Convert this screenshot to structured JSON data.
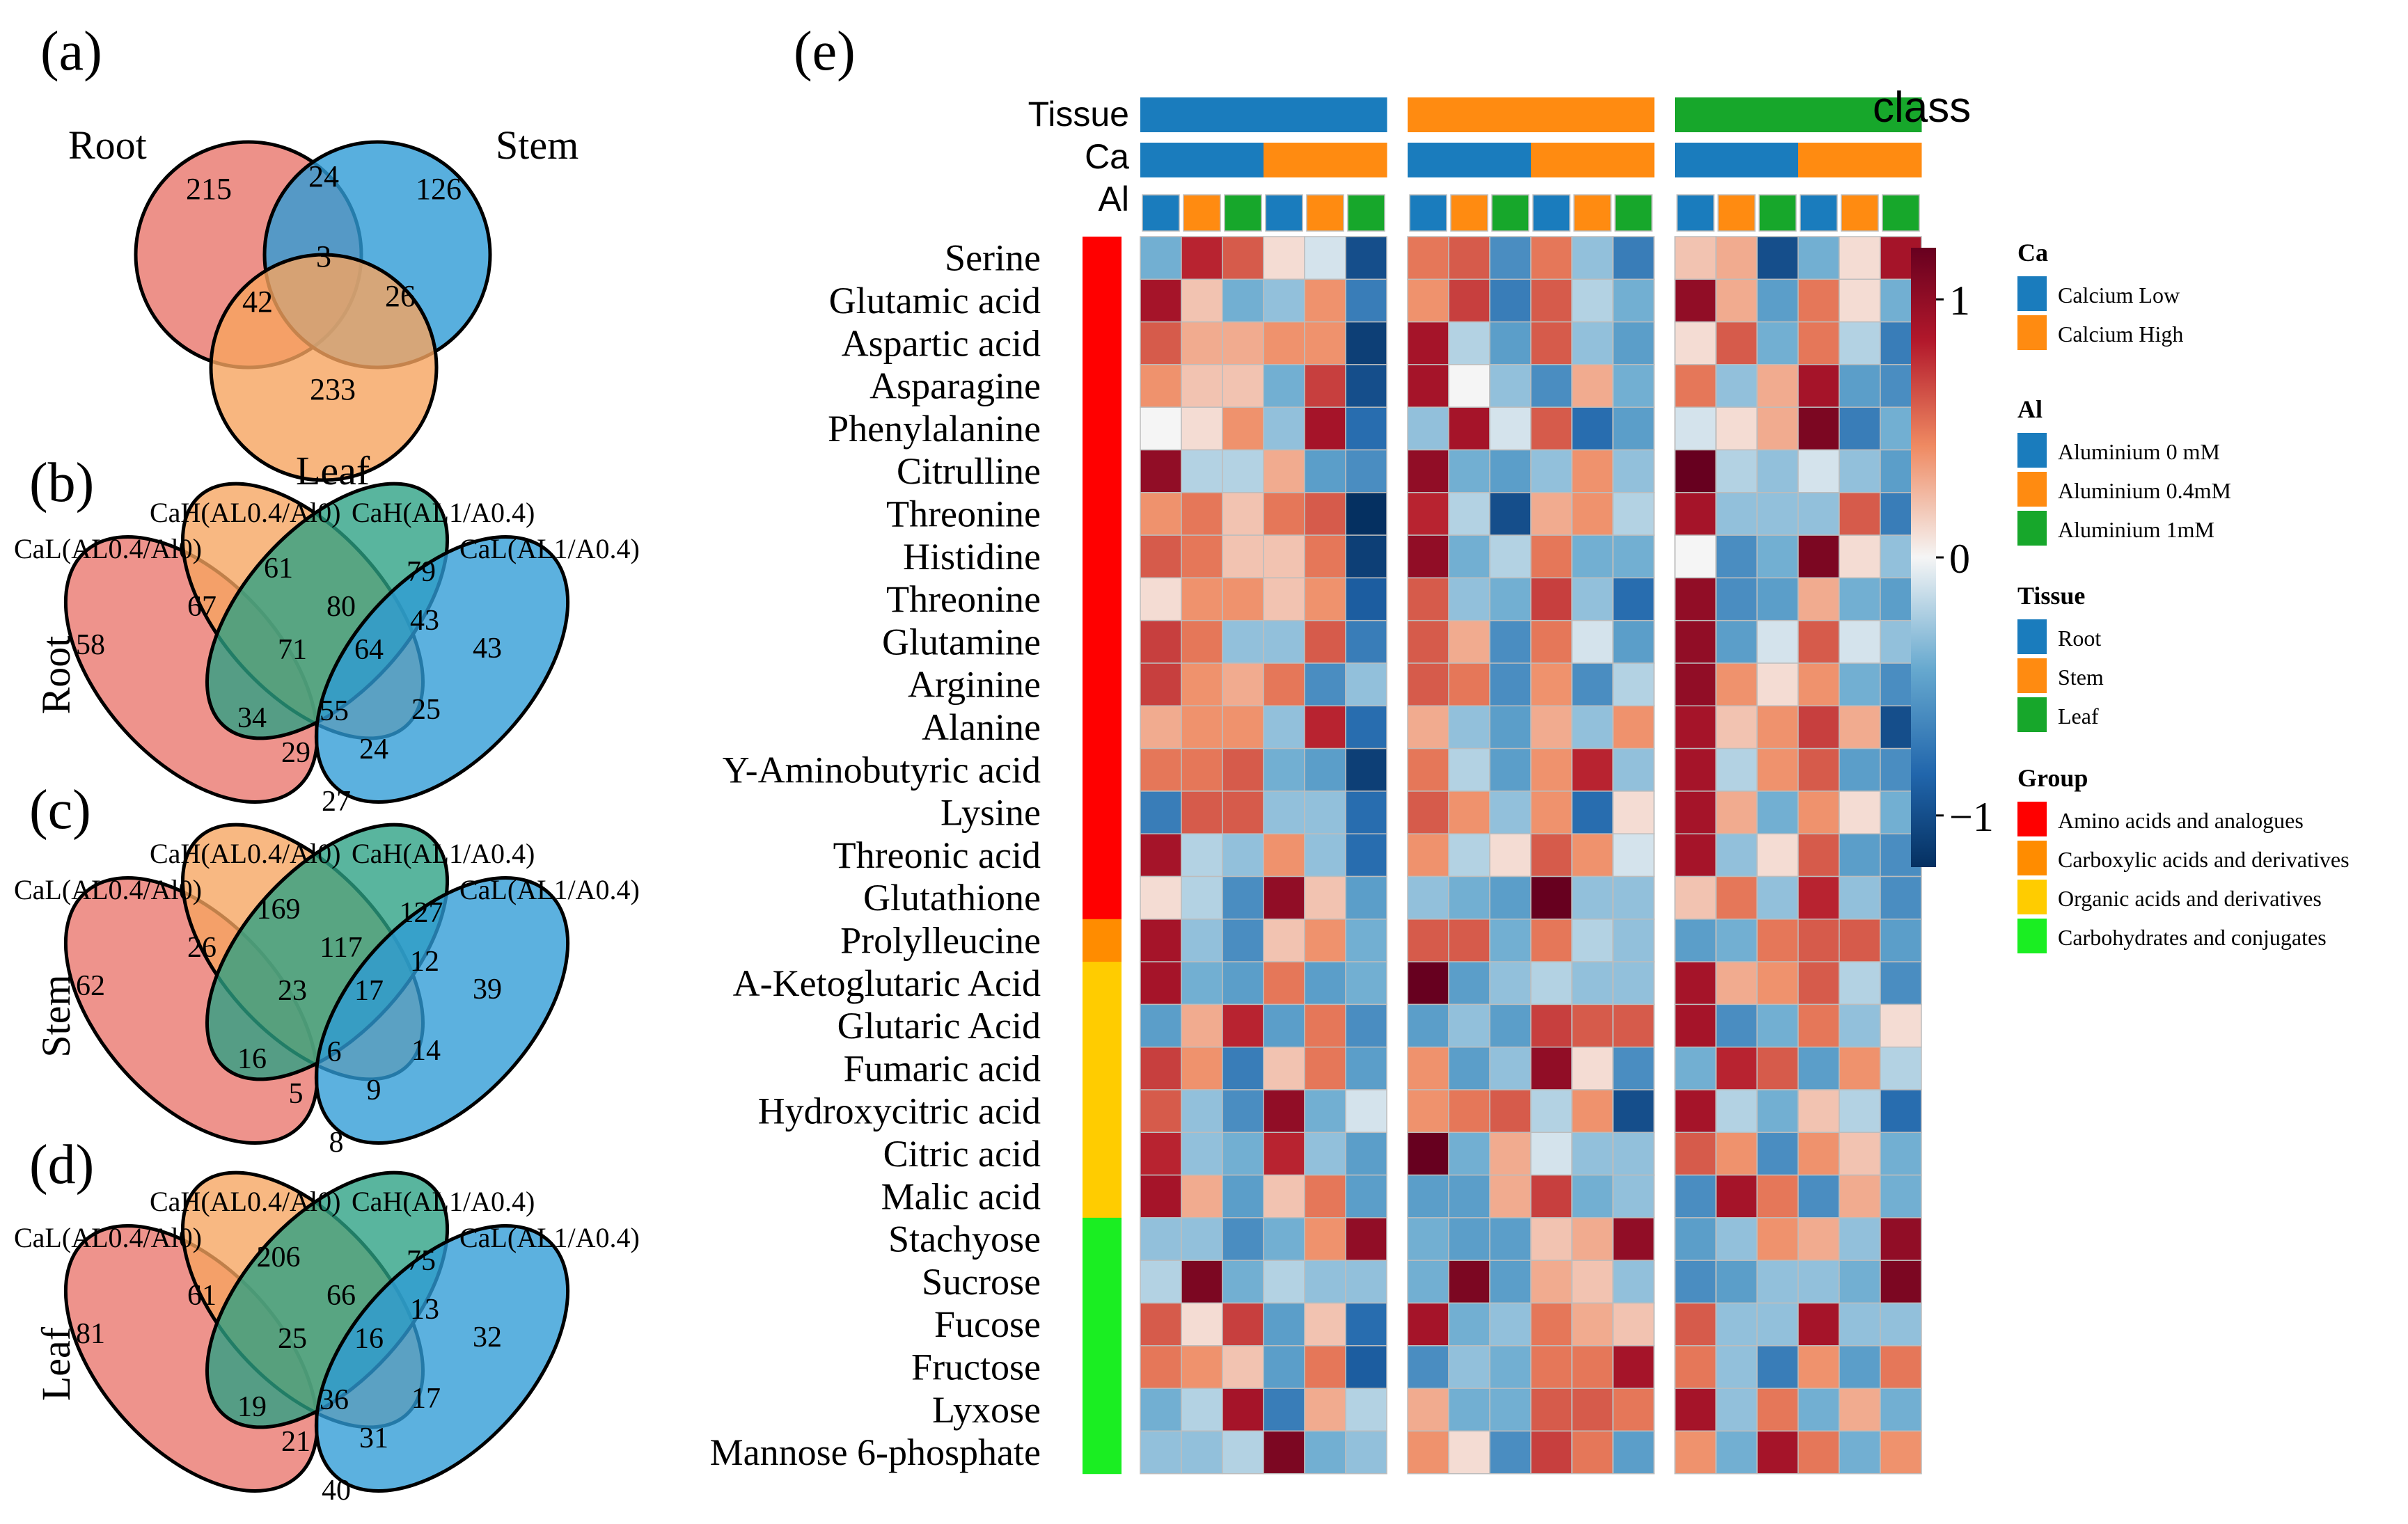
{
  "panel_labels": [
    "(a)",
    "(b)",
    "(c)",
    "(d)",
    "(e)"
  ],
  "colors": {
    "venn_red": "#e9756c",
    "venn_blue": "#2e9bd6",
    "venn_orange": "#f6a45f",
    "venn_green": "#2aa083",
    "cal_low": "#1a7cbd",
    "cal_high": "#ff8b11",
    "al_0": "#1a7cbd",
    "al_04": "#ff8b11",
    "al_1": "#17a72b",
    "tissue_root": "#1a7cbd",
    "tissue_stem": "#ff8b11",
    "tissue_leaf": "#17a72b",
    "group_amino": "#ff0000",
    "group_carboxylic": "#ff8c00",
    "group_organic": "#ffcc00",
    "group_carbo": "#1aee22",
    "heat_low": "#053061",
    "heat_mid": "#f5f5f5",
    "heat_high": "#67001f"
  },
  "chart_data": [
    {
      "type": "venn",
      "panel": "(a)",
      "sets": [
        "Root",
        "Stem",
        "Leaf"
      ],
      "regions": {
        "root_only": 215,
        "stem_only": 126,
        "leaf_only": 233,
        "root_stem": 24,
        "root_leaf": 42,
        "stem_leaf": 26,
        "all": 3
      }
    },
    {
      "type": "venn",
      "panel": "(b)",
      "side_label": "Root",
      "sets": [
        "CaL(AL0.4/Al0)",
        "CaH(AL0.4/Al0)",
        "CaH(AL1/A0.4)",
        "CaL(AL1/A0.4)"
      ],
      "regions": {
        "A": 58,
        "B": 61,
        "C": 79,
        "D": 43,
        "AB": 67,
        "BC": 80,
        "CD": 43,
        "ABC": 71,
        "BCD": 64,
        "ABCD": 55,
        "AC": 34,
        "BD": 25,
        "ACD": 29,
        "ABD": 24,
        "AD": 27
      }
    },
    {
      "type": "venn",
      "panel": "(c)",
      "side_label": "Stem",
      "sets": [
        "CaL(AL0.4/Al0)",
        "CaH(AL0.4/Al0)",
        "CaH(AL1/A0.4)",
        "CaL(AL1/A0.4)"
      ],
      "regions": {
        "A": 62,
        "B": 169,
        "C": 127,
        "D": 39,
        "AB": 26,
        "BC": 117,
        "CD": 12,
        "ABC": 23,
        "BCD": 17,
        "ABCD": 6,
        "AC": 16,
        "BD": 14,
        "ACD": 5,
        "ABD": 9,
        "AD": 8
      }
    },
    {
      "type": "venn",
      "panel": "(d)",
      "side_label": "Leaf",
      "sets": [
        "CaL(AL0.4/Al0)",
        "CaH(AL0.4/Al0)",
        "CaH(AL1/A0.4)",
        "CaL(AL1/A0.4)"
      ],
      "regions": {
        "A": 81,
        "B": 206,
        "C": 75,
        "D": 32,
        "AB": 61,
        "BC": 66,
        "CD": 13,
        "ABC": 25,
        "BCD": 16,
        "ABCD": 36,
        "AC": 19,
        "BD": 17,
        "ACD": 21,
        "ABD": 31,
        "AD": 40
      }
    },
    {
      "type": "heatmap",
      "panel": "(e)",
      "annotation_rows": [
        "Tissue",
        "Ca",
        "Al"
      ],
      "class_label": "class",
      "columns": [
        {
          "tissue": "Root",
          "ca": "Calcium Low",
          "al": "Aluminium 0 mM"
        },
        {
          "tissue": "Root",
          "ca": "Calcium Low",
          "al": "Aluminium 0.4mM"
        },
        {
          "tissue": "Root",
          "ca": "Calcium Low",
          "al": "Aluminium 1mM"
        },
        {
          "tissue": "Root",
          "ca": "Calcium High",
          "al": "Aluminium 0 mM"
        },
        {
          "tissue": "Root",
          "ca": "Calcium High",
          "al": "Aluminium 0.4mM"
        },
        {
          "tissue": "Root",
          "ca": "Calcium High",
          "al": "Aluminium 1mM"
        },
        {
          "tissue": "Stem",
          "ca": "Calcium Low",
          "al": "Aluminium 0 mM"
        },
        {
          "tissue": "Stem",
          "ca": "Calcium Low",
          "al": "Aluminium 0.4mM"
        },
        {
          "tissue": "Stem",
          "ca": "Calcium Low",
          "al": "Aluminium 1mM"
        },
        {
          "tissue": "Stem",
          "ca": "Calcium High",
          "al": "Aluminium 0 mM"
        },
        {
          "tissue": "Stem",
          "ca": "Calcium High",
          "al": "Aluminium 0.4mM"
        },
        {
          "tissue": "Stem",
          "ca": "Calcium High",
          "al": "Aluminium 1mM"
        },
        {
          "tissue": "Leaf",
          "ca": "Calcium Low",
          "al": "Aluminium 0 mM"
        },
        {
          "tissue": "Leaf",
          "ca": "Calcium Low",
          "al": "Aluminium 0.4mM"
        },
        {
          "tissue": "Leaf",
          "ca": "Calcium Low",
          "al": "Aluminium 1mM"
        },
        {
          "tissue": "Leaf",
          "ca": "Calcium High",
          "al": "Aluminium 0 mM"
        },
        {
          "tissue": "Leaf",
          "ca": "Calcium High",
          "al": "Aluminium 0.4mM"
        },
        {
          "tissue": "Leaf",
          "ca": "Calcium High",
          "al": "Aluminium 1mM"
        }
      ],
      "rows": [
        "Serine",
        "Glutamic acid",
        "Aspartic acid",
        "Asparagine",
        "Phenylalanine",
        "Citrulline",
        "Threonine",
        "Histidine",
        "Threonine",
        "Glutamine",
        "Arginine",
        "Alanine",
        "Y-Aminobutyric acid",
        "Lysine",
        "Threonic acid",
        "Glutathione",
        "Prolylleucine",
        "A-Ketoglutaric Acid",
        "Glutaric Acid",
        "Fumaric acid",
        "Hydroxycitric acid",
        "Citric acid",
        "Malic acid",
        "Stachyose",
        "Sucrose",
        "Fucose",
        "Fructose",
        "Lyxose",
        "Mannose 6-phosphate"
      ],
      "row_groups": [
        "Amino acids and analogues",
        "Amino acids and analogues",
        "Amino acids and analogues",
        "Amino acids and analogues",
        "Amino acids and analogues",
        "Amino acids and analogues",
        "Amino acids and analogues",
        "Amino acids and analogues",
        "Amino acids and analogues",
        "Amino acids and analogues",
        "Amino acids and analogues",
        "Amino acids and analogues",
        "Amino acids and analogues",
        "Amino acids and analogues",
        "Amino acids and analogues",
        "Amino acids and analogues",
        "Carboxylic acids and derivatives",
        "Organic acids and derivatives",
        "Organic acids and derivatives",
        "Organic acids and derivatives",
        "Organic acids and derivatives",
        "Organic acids and derivatives",
        "Organic acids and derivatives",
        "Carbohydrates and conjugates",
        "Carbohydrates and conjugates",
        "Carbohydrates and conjugates",
        "Carbohydrates and conjugates",
        "Carbohydrates and conjugates",
        "Carbohydrates and conjugates"
      ],
      "values": [
        [
          -0.4,
          0.8,
          0.6,
          0.1,
          -0.1,
          -1.0,
          0.5,
          0.6,
          -0.6,
          0.5,
          -0.3,
          -0.7,
          0.2,
          0.3,
          -1.0,
          -0.4,
          0.1,
          0.9
        ],
        [
          0.9,
          0.2,
          -0.4,
          -0.3,
          0.4,
          -0.7,
          0.4,
          0.7,
          -0.7,
          0.6,
          -0.2,
          -0.4,
          1.0,
          0.3,
          -0.5,
          0.5,
          0.1,
          -0.4
        ],
        [
          0.6,
          0.3,
          0.3,
          0.4,
          0.4,
          -1.1,
          0.9,
          -0.2,
          -0.5,
          0.6,
          -0.3,
          -0.5,
          0.1,
          0.6,
          -0.4,
          0.5,
          -0.2,
          -0.7
        ],
        [
          0.4,
          0.2,
          0.2,
          -0.4,
          0.7,
          -1.0,
          0.9,
          0.0,
          -0.3,
          -0.6,
          0.3,
          -0.4,
          0.5,
          -0.3,
          0.3,
          0.9,
          -0.5,
          -0.6
        ],
        [
          0.0,
          0.1,
          0.4,
          -0.3,
          0.9,
          -0.8,
          -0.3,
          0.9,
          -0.1,
          0.6,
          -0.8,
          -0.5,
          -0.1,
          0.1,
          0.3,
          1.1,
          -0.7,
          -0.4
        ],
        [
          1.0,
          -0.2,
          -0.2,
          0.3,
          -0.5,
          -0.6,
          1.0,
          -0.4,
          -0.5,
          -0.3,
          0.4,
          -0.3,
          1.2,
          -0.2,
          -0.3,
          -0.1,
          -0.3,
          -0.5
        ],
        [
          0.4,
          0.5,
          0.2,
          0.5,
          0.6,
          -1.2,
          0.8,
          -0.2,
          -1.0,
          0.3,
          0.4,
          -0.2,
          0.9,
          -0.3,
          -0.3,
          -0.3,
          0.6,
          -0.7
        ],
        [
          0.6,
          0.5,
          0.2,
          0.2,
          0.5,
          -1.1,
          1.0,
          -0.4,
          -0.2,
          0.5,
          -0.4,
          -0.4,
          0.0,
          -0.6,
          -0.4,
          1.1,
          0.1,
          -0.3
        ],
        [
          0.1,
          0.4,
          0.4,
          0.2,
          0.4,
          -0.9,
          0.6,
          -0.3,
          -0.4,
          0.7,
          -0.3,
          -0.8,
          1.0,
          -0.6,
          -0.5,
          0.3,
          -0.4,
          -0.5
        ],
        [
          0.7,
          0.5,
          -0.3,
          -0.3,
          0.6,
          -0.7,
          0.6,
          0.3,
          -0.6,
          0.5,
          -0.1,
          -0.5,
          1.0,
          -0.5,
          -0.1,
          0.6,
          -0.1,
          -0.3
        ],
        [
          0.7,
          0.4,
          0.3,
          0.5,
          -0.6,
          -0.3,
          0.6,
          0.5,
          -0.6,
          0.4,
          -0.6,
          -0.2,
          1.0,
          0.4,
          0.1,
          0.4,
          -0.4,
          -0.6
        ],
        [
          0.3,
          0.4,
          0.4,
          -0.3,
          0.8,
          -0.8,
          0.3,
          -0.3,
          -0.5,
          0.3,
          -0.3,
          0.4,
          0.9,
          0.2,
          0.4,
          0.7,
          0.3,
          -1.0
        ],
        [
          0.5,
          0.5,
          0.6,
          -0.4,
          -0.5,
          -1.1,
          0.5,
          -0.2,
          -0.5,
          0.4,
          0.8,
          -0.3,
          0.9,
          -0.2,
          0.4,
          0.6,
          -0.5,
          -0.6
        ],
        [
          -0.7,
          0.6,
          0.6,
          -0.3,
          -0.3,
          -0.8,
          0.6,
          0.4,
          -0.3,
          0.4,
          -0.8,
          0.1,
          0.9,
          0.3,
          -0.4,
          0.4,
          0.1,
          -0.4
        ],
        [
          0.9,
          -0.2,
          -0.3,
          0.4,
          -0.3,
          -0.8,
          0.4,
          -0.2,
          0.1,
          0.6,
          0.4,
          -0.1,
          0.9,
          -0.3,
          0.1,
          0.6,
          -0.5,
          -0.6
        ],
        [
          0.1,
          -0.2,
          -0.6,
          1.0,
          0.2,
          -0.5,
          -0.3,
          -0.4,
          -0.5,
          1.2,
          -0.3,
          -0.3,
          0.2,
          0.5,
          -0.3,
          0.8,
          -0.3,
          -0.6
        ],
        [
          0.9,
          -0.3,
          -0.6,
          0.2,
          0.4,
          -0.4,
          0.6,
          0.6,
          -0.4,
          0.5,
          -0.2,
          -0.3,
          -0.5,
          -0.4,
          0.5,
          0.6,
          0.6,
          -0.5
        ],
        [
          0.9,
          -0.4,
          -0.5,
          0.5,
          -0.5,
          -0.4,
          1.2,
          -0.5,
          -0.3,
          -0.2,
          -0.3,
          -0.3,
          0.9,
          0.3,
          0.4,
          0.6,
          -0.2,
          -0.6
        ],
        [
          -0.5,
          0.3,
          0.8,
          -0.5,
          0.5,
          -0.6,
          -0.5,
          -0.3,
          -0.5,
          0.7,
          0.6,
          0.6,
          0.9,
          -0.6,
          -0.4,
          0.5,
          -0.3,
          0.1
        ],
        [
          0.7,
          0.4,
          -0.7,
          0.2,
          0.5,
          -0.5,
          0.4,
          -0.5,
          -0.3,
          1.0,
          0.1,
          -0.6,
          -0.4,
          0.8,
          0.6,
          -0.5,
          0.4,
          -0.2
        ],
        [
          0.6,
          -0.3,
          -0.6,
          1.0,
          -0.4,
          -0.1,
          0.4,
          0.5,
          0.6,
          -0.2,
          0.4,
          -1.0,
          0.9,
          -0.2,
          -0.4,
          0.2,
          -0.2,
          -0.8
        ],
        [
          0.8,
          -0.3,
          -0.4,
          0.8,
          -0.3,
          -0.5,
          1.2,
          -0.4,
          0.3,
          -0.1,
          -0.3,
          -0.3,
          0.6,
          0.4,
          -0.6,
          0.4,
          0.2,
          -0.4
        ],
        [
          0.9,
          0.3,
          -0.5,
          0.2,
          0.5,
          -0.5,
          -0.5,
          -0.5,
          0.3,
          0.7,
          -0.4,
          -0.3,
          -0.6,
          0.9,
          0.5,
          -0.6,
          0.3,
          -0.4
        ],
        [
          -0.3,
          -0.3,
          -0.6,
          -0.4,
          0.4,
          1.0,
          -0.4,
          -0.5,
          -0.5,
          0.2,
          0.3,
          1.0,
          -0.5,
          -0.3,
          0.4,
          0.3,
          -0.3,
          1.0
        ],
        [
          -0.2,
          1.1,
          -0.4,
          -0.2,
          -0.3,
          -0.3,
          -0.4,
          1.1,
          -0.5,
          0.3,
          0.2,
          -0.3,
          -0.6,
          -0.5,
          -0.3,
          -0.3,
          -0.4,
          1.1
        ],
        [
          0.6,
          0.1,
          0.7,
          -0.5,
          0.2,
          -0.8,
          0.9,
          -0.4,
          -0.3,
          0.5,
          0.3,
          0.2,
          0.6,
          -0.3,
          -0.3,
          0.9,
          -0.3,
          -0.3
        ],
        [
          0.5,
          0.4,
          0.2,
          -0.5,
          0.5,
          -0.9,
          -0.6,
          -0.3,
          -0.4,
          0.5,
          0.5,
          0.9,
          0.5,
          -0.3,
          -0.7,
          0.4,
          -0.5,
          0.5
        ],
        [
          -0.4,
          -0.2,
          0.9,
          -0.7,
          0.3,
          -0.2,
          0.3,
          -0.4,
          -0.4,
          0.6,
          0.6,
          0.5,
          0.9,
          -0.3,
          0.5,
          -0.4,
          0.3,
          -0.4
        ],
        [
          -0.3,
          -0.3,
          -0.2,
          1.1,
          -0.4,
          -0.3,
          0.4,
          0.1,
          -0.6,
          0.7,
          0.5,
          -0.5,
          0.4,
          -0.4,
          0.9,
          0.5,
          -0.4,
          0.4
        ]
      ],
      "color_scale": {
        "min": -1.2,
        "max": 1.2,
        "ticks": [
          1,
          0,
          -1
        ],
        "tick_labels": [
          "1",
          "0",
          "−1"
        ]
      },
      "legend": {
        "Ca": {
          "title": "Ca",
          "items": [
            "Calcium Low",
            "Calcium High"
          ]
        },
        "Al": {
          "title": "Al",
          "items": [
            "Aluminium 0 mM",
            "Aluminium 0.4mM",
            "Aluminium 1mM"
          ]
        },
        "Tissue": {
          "title": "Tissue",
          "items": [
            "Root",
            "Stem",
            "Leaf"
          ]
        },
        "Group": {
          "title": "Group",
          "items": [
            "Amino acids and analogues",
            "Carboxylic acids and derivatives",
            "Organic acids and derivatives",
            "Carbohydrates and conjugates"
          ]
        }
      }
    }
  ]
}
